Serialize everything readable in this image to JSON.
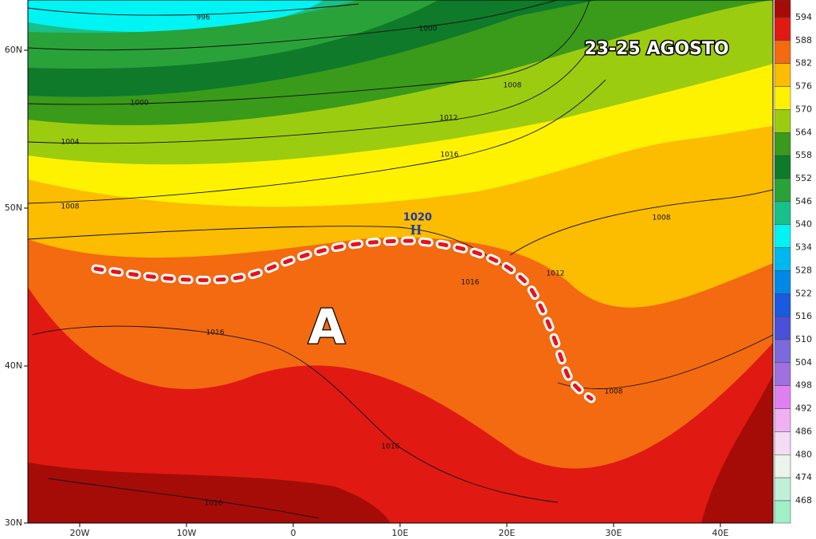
{
  "map": {
    "title": "23-25 AGOSTO",
    "anticyclone_label": "A",
    "high": {
      "pressure": 1020,
      "letter": "H"
    },
    "isobar_labels": [
      996,
      1000,
      1000,
      1004,
      1008,
      1008,
      1012,
      1016,
      1016,
      1016,
      1012,
      1008,
      1008,
      1016,
      1016
    ],
    "latitude_labels": [
      "60N",
      "50N",
      "40N",
      "30N"
    ],
    "longitude_labels": [
      "20W",
      "10W",
      "0",
      "10E",
      "20E",
      "30E",
      "40E"
    ],
    "colorbar": {
      "labels": [
        594,
        588,
        582,
        576,
        570,
        564,
        558,
        552,
        546,
        540,
        534,
        528,
        522,
        516,
        510,
        504,
        498,
        492,
        486,
        480,
        474,
        468
      ]
    }
  }
}
